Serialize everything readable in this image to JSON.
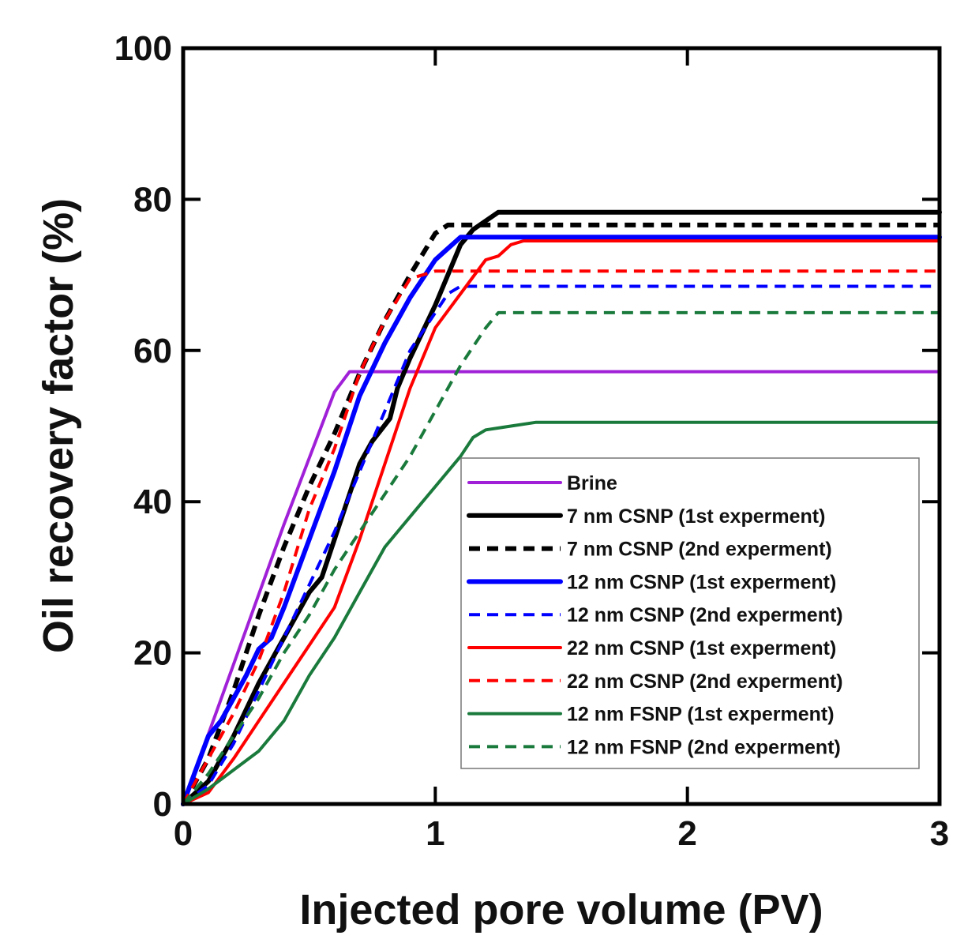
{
  "chart_data": {
    "type": "line",
    "title": "",
    "xlabel": "Injected pore volume (PV)",
    "ylabel": "Oil recovery factor (%)",
    "xlim": [
      0,
      3
    ],
    "ylim": [
      0,
      100
    ],
    "xticks": [
      "0",
      "1",
      "2",
      "3"
    ],
    "yticks": [
      "0",
      "20",
      "40",
      "60",
      "80",
      "100"
    ],
    "grid": false,
    "legend_position": "bottom-right",
    "series": [
      {
        "name": "Brine",
        "color": "#a020d8",
        "dash": "solid",
        "weight": "normal",
        "x": [
          0,
          0.2,
          0.4,
          0.6,
          0.66,
          3
        ],
        "y": [
          0,
          18.5,
          37,
          54.5,
          57.2,
          57.2
        ]
      },
      {
        "name": "7 nm CSNP (1st experment)",
        "color": "#000000",
        "dash": "solid",
        "weight": "bold",
        "x": [
          0,
          0.1,
          0.2,
          0.3,
          0.4,
          0.5,
          0.55,
          0.6,
          0.7,
          0.75,
          0.82,
          0.85,
          0.9,
          1.0,
          1.05,
          1.1,
          1.15,
          1.25,
          3
        ],
        "y": [
          0,
          3,
          9,
          16,
          22,
          28,
          30,
          35,
          45,
          48,
          51,
          55,
          59,
          66,
          70,
          74,
          76,
          78.3,
          78.3
        ]
      },
      {
        "name": "7 nm CSNP  (2nd experment)",
        "color": "#000000",
        "dash": "dash",
        "weight": "bold",
        "x": [
          0,
          0.1,
          0.2,
          0.3,
          0.4,
          0.5,
          0.6,
          0.7,
          0.8,
          0.9,
          1.0,
          1.05,
          1.1,
          1.2,
          3
        ],
        "y": [
          0,
          6,
          15,
          25,
          34,
          42,
          49,
          57,
          64,
          70,
          75.5,
          76.6,
          76.6,
          76.6,
          76.6
        ]
      },
      {
        "name": "12 nm CSNP (1st experment)",
        "color": "#0000ff",
        "dash": "solid",
        "weight": "bold",
        "x": [
          0,
          0.1,
          0.15,
          0.2,
          0.25,
          0.3,
          0.35,
          0.4,
          0.5,
          0.6,
          0.7,
          0.8,
          0.9,
          1.0,
          1.05,
          1.1,
          1.15,
          3
        ],
        "y": [
          0,
          9,
          11,
          14,
          17,
          20.5,
          22,
          26,
          35,
          44,
          54,
          61,
          67,
          72,
          73.5,
          75,
          75,
          75
        ]
      },
      {
        "name": "12 nm CSNP  (2nd experment)",
        "color": "#0000ff",
        "dash": "dash",
        "weight": "normal",
        "x": [
          0,
          0.1,
          0.2,
          0.3,
          0.4,
          0.5,
          0.6,
          0.7,
          0.8,
          0.9,
          1.0,
          1.05,
          1.1,
          3
        ],
        "y": [
          0,
          2.5,
          8,
          15,
          22,
          29,
          36,
          44,
          52,
          60,
          65,
          67.5,
          68.5,
          68.5
        ]
      },
      {
        "name": "22 nm CSNP (1st experment)",
        "color": "#ff0000",
        "dash": "solid",
        "weight": "normal",
        "x": [
          0,
          0.1,
          0.2,
          0.3,
          0.4,
          0.5,
          0.6,
          0.7,
          0.8,
          0.9,
          1.0,
          1.1,
          1.2,
          1.25,
          1.3,
          1.35,
          3
        ],
        "y": [
          0,
          1.5,
          6,
          11,
          16,
          21,
          26,
          35,
          45,
          55,
          63,
          67.5,
          72,
          72.5,
          74,
          74.5,
          74.5
        ]
      },
      {
        "name": "22 nm CSNP  (2nd experment)",
        "color": "#ff0000",
        "dash": "dash",
        "weight": "normal",
        "x": [
          0,
          0.1,
          0.2,
          0.3,
          0.4,
          0.5,
          0.6,
          0.7,
          0.8,
          0.9,
          1.0,
          3
        ],
        "y": [
          0,
          6,
          12,
          19,
          28,
          39,
          47,
          57,
          64,
          69.5,
          70.5,
          70.5
        ]
      },
      {
        "name": "12 nm FSNP (1st experment)",
        "color": "#1a7a3c",
        "dash": "solid",
        "weight": "normal",
        "x": [
          0,
          0.1,
          0.2,
          0.3,
          0.4,
          0.5,
          0.6,
          0.7,
          0.8,
          0.9,
          1.0,
          1.1,
          1.15,
          1.2,
          1.3,
          1.4,
          3
        ],
        "y": [
          0,
          2,
          4.5,
          7,
          11,
          17,
          22,
          28,
          34,
          38,
          42,
          46,
          48.5,
          49.5,
          50,
          50.5,
          50.5
        ]
      },
      {
        "name": "12 nm FSNP (2nd experment)",
        "color": "#1a7a3c",
        "dash": "dash",
        "weight": "normal",
        "x": [
          0,
          0.1,
          0.2,
          0.3,
          0.4,
          0.5,
          0.6,
          0.7,
          0.8,
          0.9,
          1.0,
          1.1,
          1.2,
          1.25,
          3
        ],
        "y": [
          0,
          4,
          9,
          14,
          20,
          25,
          31,
          36,
          41,
          46,
          52,
          58,
          63,
          65,
          65
        ]
      }
    ]
  }
}
